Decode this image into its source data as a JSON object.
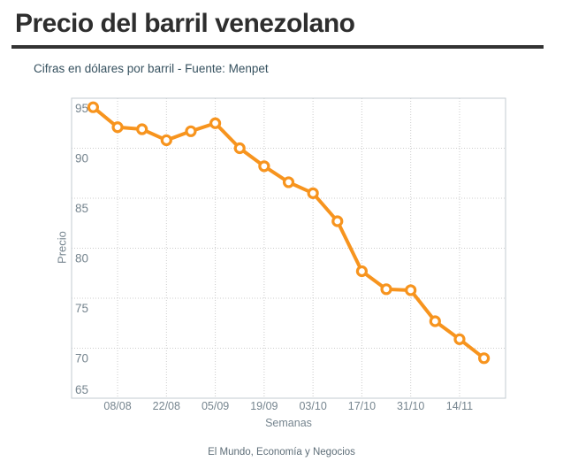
{
  "page": {
    "title": "Precio del barril venezolano",
    "subtitle": "Cifras en dólares por barril - Fuente: Menpet",
    "footer": "El Mundo, Economía y Negocios"
  },
  "colors": {
    "line_orange": "#F7941E",
    "marker_fill": "#FFFFFF",
    "title_text": "#2E2E2E",
    "subtitle_text": "#36515F",
    "axis_text": "#76858F",
    "plot_border": "#C3CBD0",
    "gridline": "#CCCCCC",
    "footer_text": "#5E6E78",
    "title_rule": "#333333"
  },
  "icons": {},
  "chart_data": {
    "type": "line",
    "title": "Precio del barril venezolano",
    "xlabel": "Semanas",
    "ylabel": "Precio",
    "ylim": [
      65,
      95
    ],
    "y_ticks": [
      65,
      70,
      75,
      80,
      85,
      90,
      95
    ],
    "x_tick_labels": [
      "08/08",
      "22/08",
      "05/09",
      "19/09",
      "03/10",
      "17/10",
      "31/10",
      "14/11"
    ],
    "x_tick_point_indices": [
      1,
      3,
      5,
      7,
      9,
      11,
      13,
      15
    ],
    "grid": "dotted",
    "legend_position": "none",
    "series": [
      {
        "name": "Precio del barril venezolano (USD por barril)",
        "values": [
          94.1,
          92.1,
          91.9,
          90.8,
          91.7,
          92.5,
          90.0,
          88.2,
          86.6,
          85.5,
          82.7,
          77.7,
          75.9,
          75.8,
          72.7,
          70.9,
          69.0
        ]
      }
    ]
  }
}
